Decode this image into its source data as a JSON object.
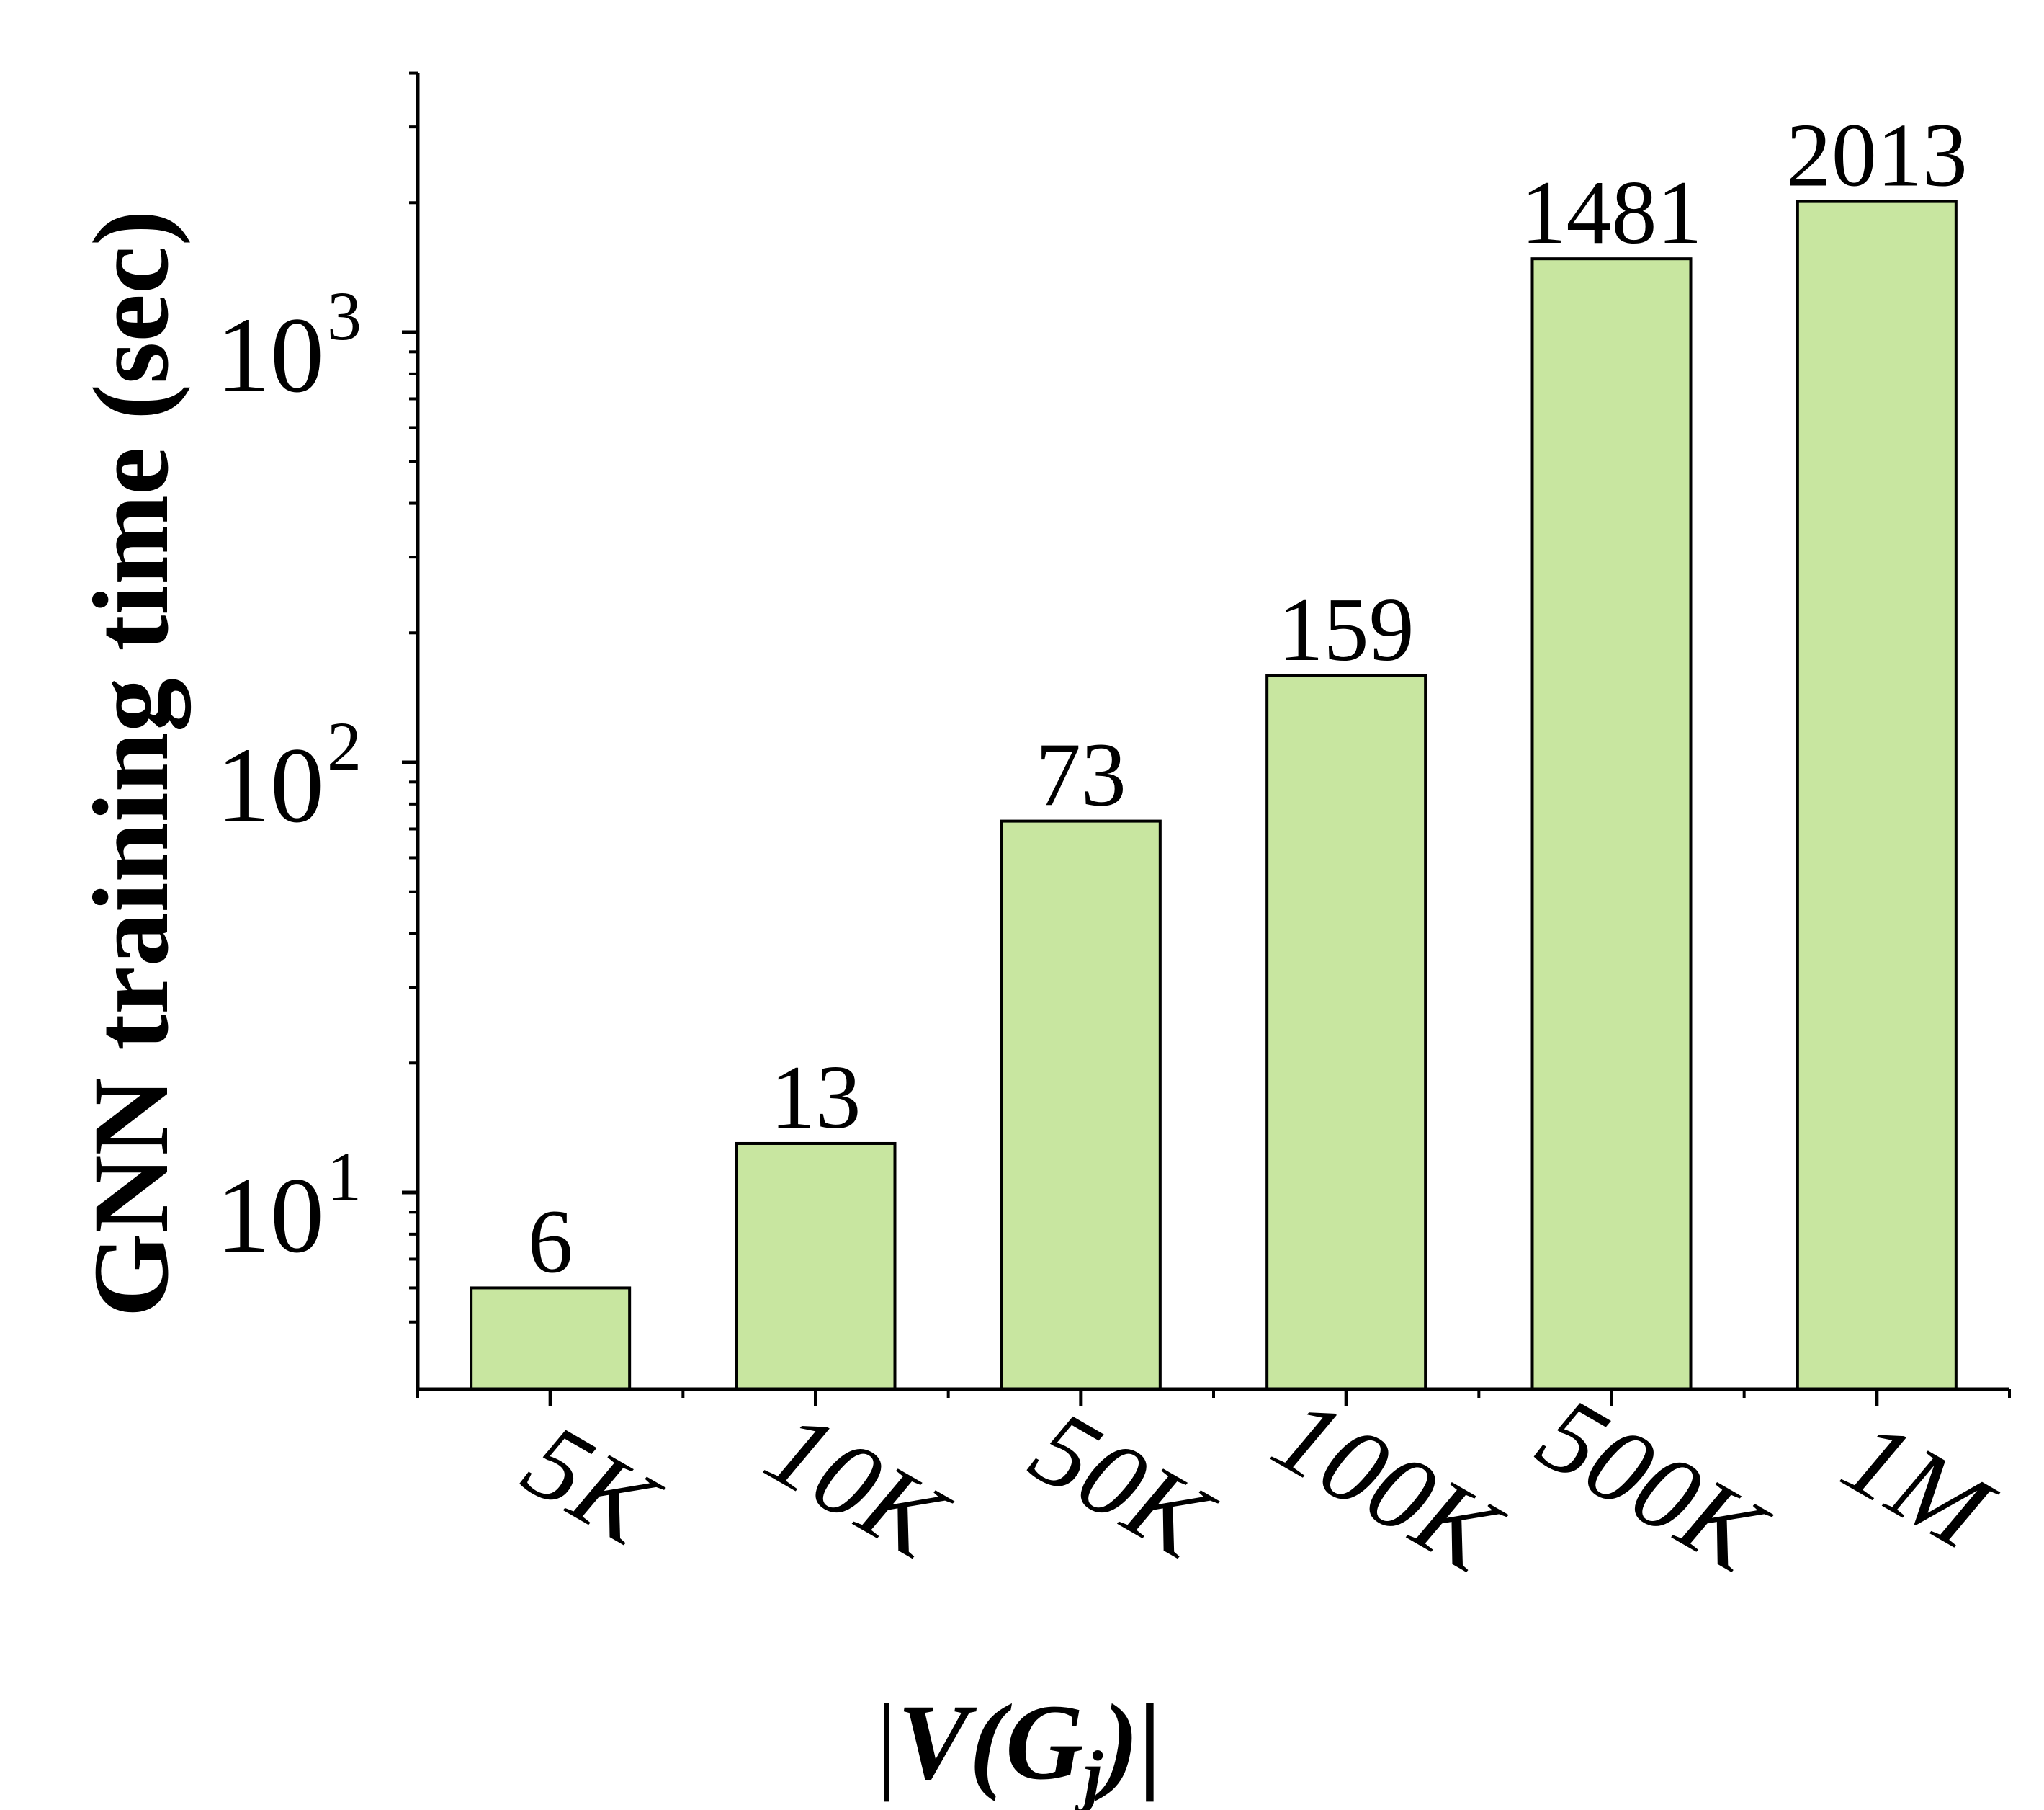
{
  "chart_data": {
    "type": "bar",
    "categories": [
      "5K",
      "10K",
      "50K",
      "100K",
      "500K",
      "1M"
    ],
    "values": [
      6,
      13,
      73,
      159,
      1481,
      2013
    ],
    "data_labels": [
      "6",
      "13",
      "73",
      "159",
      "1481",
      "2013"
    ],
    "ylabel": "GNN training time (sec)",
    "xlabel": {
      "prefix": "|",
      "V": "V",
      "open_paren": "(",
      "G": "G",
      "subscript": "j",
      "close": ")|"
    },
    "yscale": "log",
    "ylim": [
      4.2,
      4000
    ],
    "y_ticks": [
      {
        "base": "10",
        "exp": "1",
        "value": 10
      },
      {
        "base": "10",
        "exp": "2",
        "value": 100
      },
      {
        "base": "10",
        "exp": "3",
        "value": 1000
      }
    ],
    "grid": false,
    "legend": "none",
    "colors": {
      "bar_fill": "#c8e6a0",
      "bar_stroke": "#000000",
      "axis": "#000000"
    }
  }
}
